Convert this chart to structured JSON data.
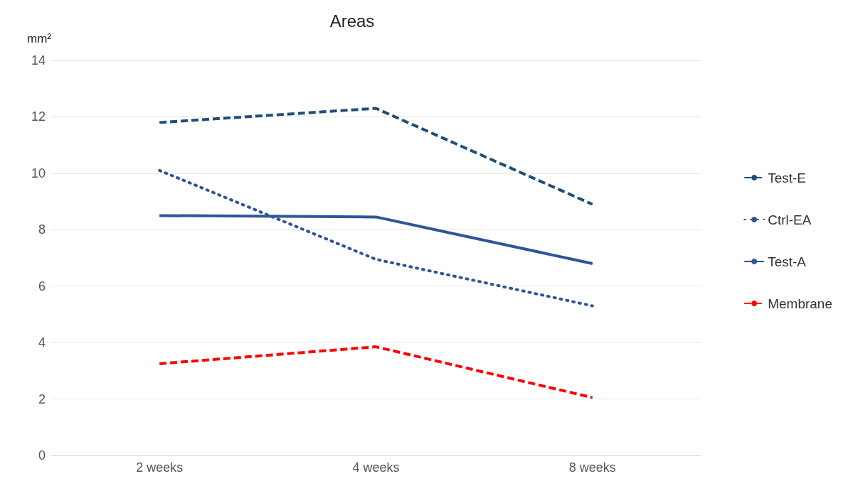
{
  "chart_data": {
    "type": "line",
    "title": "Areas",
    "ylabel": "mm²",
    "categories": [
      "2 weeks",
      "4 weeks",
      "8 weeks"
    ],
    "series": [
      {
        "name": "Test-E",
        "color": "#1f4e79",
        "line_style": "dashed",
        "values": [
          11.8,
          12.3,
          8.9
        ]
      },
      {
        "name": "Ctrl-EA",
        "color": "#2f5597",
        "line_style": "dotted",
        "values": [
          10.1,
          6.95,
          5.3
        ]
      },
      {
        "name": "Test-A",
        "color": "#2f5597",
        "line_style": "solid",
        "values": [
          8.5,
          8.45,
          6.8
        ]
      },
      {
        "name": "Membrane",
        "color": "#ff0000",
        "line_style": "dashed",
        "values": [
          3.25,
          3.85,
          2.05
        ]
      }
    ],
    "ylim": [
      0,
      14
    ],
    "yticks": [
      0,
      2,
      4,
      6,
      8,
      10,
      12,
      14
    ],
    "grid": "y",
    "legend": "right",
    "marker": "none"
  }
}
